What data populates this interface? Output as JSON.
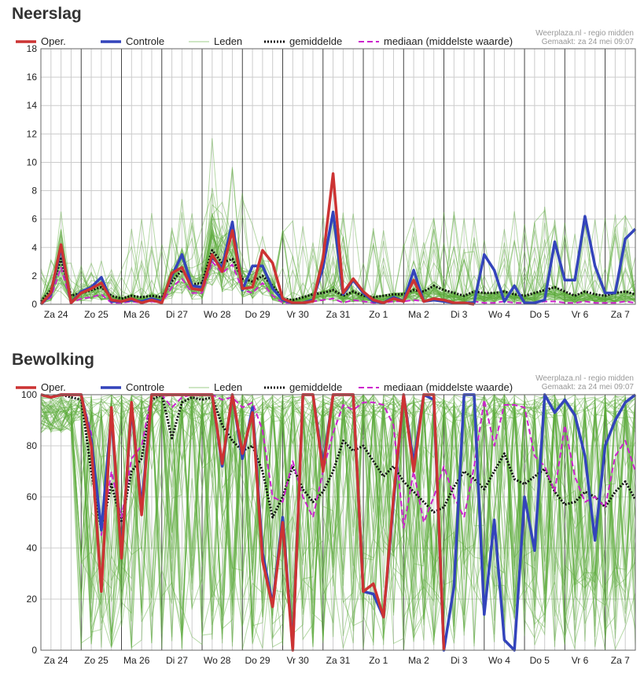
{
  "charts": [
    {
      "section_title": "Neerslag",
      "credit_line1": "Weerplaza.nl - regio midden",
      "credit_line2": "Gemaakt: za 24 mei 09:07"
    },
    {
      "section_title": "Bewolking",
      "credit_line1": "Weerplaza.nl - regio midden",
      "credit_line2": "Gemaakt: za 24 mei 09:07"
    }
  ],
  "colors": {
    "oper": "#cc3333",
    "controle": "#3344bb",
    "leden": "#5aaa3a",
    "gemiddelde": "#111111",
    "mediaan": "#cc22cc",
    "grid": "#cccccc",
    "daysep": "#444444"
  },
  "chart_data": [
    {
      "type": "line",
      "title": "Neerslag",
      "x_label_days": [
        "Za 24",
        "Zo 25",
        "Ma 26",
        "Di 27",
        "Wo 28",
        "Do 29",
        "Vr 30",
        "Za 31",
        "Zo 1",
        "Ma 2",
        "Di 3",
        "Wo 4",
        "Do 5",
        "Vr 6",
        "Za 7"
      ],
      "x_unit": "6-hour steps (4 per day)",
      "ylim": [
        0,
        18
      ],
      "yticks": [
        "0",
        "2",
        "4",
        "6",
        "8",
        "10",
        "12",
        "14",
        "16",
        "18"
      ],
      "legend": [
        "Oper.",
        "Controle",
        "Leden",
        "gemiddelde",
        "mediaan (middelste waarde)"
      ],
      "legend_position": "top",
      "series": [
        {
          "name": "Oper.",
          "values": [
            0,
            0.8,
            4.2,
            0.1,
            0.8,
            1.1,
            1.5,
            0.3,
            0.2,
            0.4,
            0.1,
            0.3,
            0.1,
            2.2,
            2.6,
            1.1,
            1.0,
            3.5,
            2.3,
            5.2,
            1.1,
            1.2,
            3.8,
            2.9,
            0.4,
            0.1,
            0.1,
            0.2,
            3.2,
            9.2,
            0.8,
            1.8,
            0.9,
            0.3,
            0.1,
            0.4,
            0.2,
            1.7,
            0.2,
            0.4,
            0.3,
            0.1,
            0.1,
            0,
            0,
            0,
            0,
            0,
            0,
            0,
            0,
            0,
            0,
            0,
            0,
            0,
            0,
            0,
            0,
            0
          ]
        },
        {
          "name": "Controle",
          "values": [
            0,
            0.7,
            4.0,
            0.1,
            0.9,
            1.2,
            1.9,
            0.2,
            0.2,
            0.3,
            0.2,
            0.4,
            0.2,
            2.0,
            3.5,
            1.3,
            1.2,
            3.3,
            2.6,
            5.8,
            1.0,
            2.7,
            2.7,
            1.1,
            0.3,
            0.1,
            0.1,
            0.3,
            2.6,
            6.5,
            0.7,
            1.7,
            0.8,
            0.2,
            0.1,
            0.5,
            0.2,
            2.4,
            0.2,
            0.3,
            0.2,
            0.1,
            0.1,
            0.1,
            3.5,
            2.4,
            0.2,
            1.3,
            0.1,
            0.1,
            0.3,
            4.4,
            1.7,
            1.7,
            6.2,
            2.7,
            0.8,
            0.8,
            4.6,
            5.3
          ]
        },
        {
          "name": "gemiddelde",
          "values": [
            0.2,
            1.0,
            3.2,
            0.6,
            0.8,
            1.0,
            1.2,
            0.6,
            0.4,
            0.6,
            0.5,
            0.6,
            0.5,
            1.6,
            2.4,
            1.4,
            1.5,
            3.8,
            2.9,
            3.2,
            1.8,
            1.6,
            2.0,
            1.3,
            0.4,
            0.3,
            0.5,
            0.7,
            0.8,
            1.0,
            0.6,
            0.9,
            0.6,
            0.5,
            0.6,
            0.7,
            0.7,
            1.0,
            0.9,
            1.3,
            1.0,
            0.8,
            0.6,
            0.9,
            0.8,
            0.8,
            0.9,
            0.7,
            0.6,
            0.8,
            1.0,
            1.2,
            0.9,
            0.6,
            0.9,
            0.7,
            0.6,
            0.8,
            0.9,
            0.7
          ]
        },
        {
          "name": "mediaan (middelste waarde)",
          "values": [
            0,
            0.5,
            2.6,
            0.1,
            0.4,
            0.5,
            0.7,
            0.1,
            0.1,
            0.2,
            0.1,
            0.2,
            0.1,
            1.2,
            1.8,
            0.8,
            0.8,
            3.0,
            2.2,
            2.8,
            1.0,
            0.8,
            1.5,
            0.6,
            0.1,
            0.1,
            0.1,
            0.2,
            0.3,
            0.4,
            0.1,
            0.3,
            0.2,
            0.1,
            0.1,
            0.2,
            0.2,
            0.3,
            0.2,
            0.4,
            0.2,
            0.1,
            0.1,
            0.2,
            0.1,
            0.1,
            0.2,
            0.1,
            0.1,
            0.1,
            0.2,
            0.2,
            0.1,
            0.1,
            0.2,
            0.1,
            0.1,
            0.1,
            0.2,
            0.1
          ]
        }
      ]
    },
    {
      "type": "line",
      "title": "Bewolking",
      "x_label_days": [
        "Za 24",
        "Zo 25",
        "Ma 26",
        "Di 27",
        "Wo 28",
        "Do 29",
        "Vr 30",
        "Za 31",
        "Zo 1",
        "Ma 2",
        "Di 3",
        "Wo 4",
        "Do 5",
        "Vr 6",
        "Za 7"
      ],
      "x_unit": "6-hour steps (4 per day)",
      "ylim": [
        0,
        100
      ],
      "yticks": [
        "0",
        "20",
        "40",
        "60",
        "80",
        "100"
      ],
      "legend": [
        "Oper.",
        "Controle",
        "Leden",
        "gemiddelde",
        "mediaan (middelste waarde)"
      ],
      "legend_position": "top",
      "series": [
        {
          "name": "Oper.",
          "values": [
            100,
            99,
            100,
            100,
            100,
            80,
            23,
            95,
            36,
            97,
            53,
            100,
            100,
            100,
            100,
            100,
            100,
            100,
            73,
            100,
            77,
            93,
            35,
            17,
            50,
            0,
            100,
            100,
            70,
            100,
            100,
            100,
            23,
            26,
            13,
            60,
            100,
            70,
            100,
            100,
            0,
            0,
            0,
            0,
            0,
            0,
            0,
            0,
            0,
            0,
            0,
            0,
            0,
            0,
            0,
            0,
            0,
            0,
            0,
            0
          ]
        },
        {
          "name": "Controle",
          "values": [
            100,
            99,
            100,
            100,
            100,
            82,
            47,
            92,
            38,
            95,
            56,
            100,
            100,
            100,
            100,
            100,
            100,
            100,
            72,
            100,
            75,
            95,
            38,
            18,
            52,
            1,
            100,
            100,
            72,
            100,
            100,
            100,
            23,
            22,
            13,
            58,
            100,
            73,
            100,
            98,
            0,
            25,
            100,
            100,
            14,
            51,
            4,
            0,
            60,
            39,
            100,
            93,
            98,
            92,
            76,
            43,
            80,
            90,
            97,
            100
          ]
        },
        {
          "name": "gemiddelde",
          "values": [
            100,
            99,
            100,
            99,
            98,
            70,
            47,
            65,
            50,
            70,
            75,
            98,
            100,
            83,
            97,
            99,
            98,
            99,
            88,
            82,
            78,
            80,
            70,
            52,
            60,
            72,
            63,
            58,
            62,
            70,
            82,
            78,
            80,
            74,
            68,
            72,
            66,
            62,
            58,
            54,
            56,
            64,
            70,
            67,
            63,
            70,
            77,
            67,
            65,
            68,
            71,
            62,
            57,
            58,
            62,
            60,
            56,
            62,
            66,
            59
          ]
        },
        {
          "name": "mediaan (middelste waarde)",
          "values": [
            100,
            99,
            100,
            100,
            100,
            85,
            45,
            70,
            52,
            75,
            80,
            100,
            100,
            95,
            99,
            100,
            100,
            100,
            98,
            99,
            95,
            97,
            86,
            60,
            58,
            74,
            60,
            52,
            70,
            85,
            96,
            94,
            97,
            97,
            96,
            88,
            48,
            70,
            50,
            60,
            72,
            60,
            52,
            72,
            98,
            80,
            96,
            96,
            95,
            76,
            72,
            62,
            88,
            68,
            58,
            60,
            56,
            76,
            82,
            70
          ]
        }
      ]
    }
  ]
}
